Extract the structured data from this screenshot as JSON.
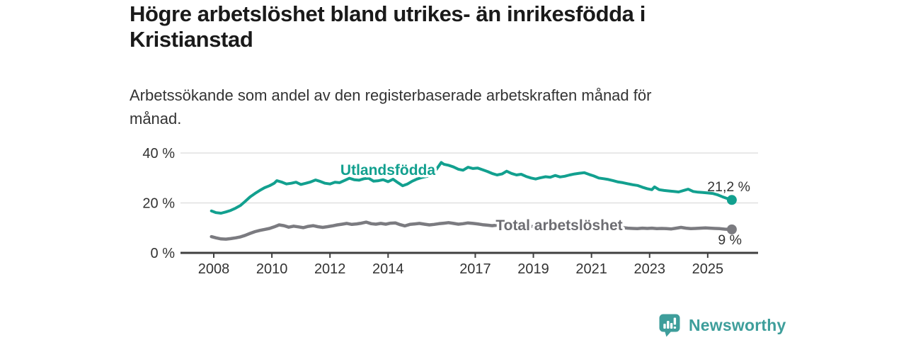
{
  "header": {
    "title_lines": [
      "Högre arbetslöshet bland utrikes- än inrikesfödda i",
      "Kristianstad"
    ],
    "subtitle_lines": [
      "Arbetssökande som andel av den registerbaserade arbetskraften månad för",
      "månad."
    ]
  },
  "chart_data": {
    "type": "line",
    "title": "Högre arbetslöshet bland utrikes- än inrikesfödda i Kristianstad",
    "subtitle": "Arbetssökande som andel av den registerbaserade arbetskraften månad för månad.",
    "grid": "horizontal",
    "legend_position": "inline-labels",
    "x_axis": {
      "ticks": [
        2008,
        2010,
        2012,
        2014,
        2017,
        2019,
        2021,
        2023,
        2025
      ],
      "tick_labels": [
        "2008",
        "2010",
        "2012",
        "2014",
        "2017",
        "2019",
        "2021",
        "2023",
        "2025"
      ],
      "range": [
        2007.8,
        2026.2
      ]
    },
    "y_axis": {
      "ticks": [
        0,
        20,
        40
      ],
      "tick_labels": [
        "0 %",
        "20 %",
        "40 %"
      ],
      "range": [
        0,
        42
      ],
      "unit": "%"
    },
    "series": [
      {
        "name": "Utlandsfödda",
        "color": "#12A08F",
        "end_label": "21,2 %",
        "end_value": 21.2,
        "points": [
          [
            2007.92,
            16.8
          ],
          [
            2008.08,
            16.1
          ],
          [
            2008.25,
            15.9
          ],
          [
            2008.42,
            16.4
          ],
          [
            2008.58,
            17.0
          ],
          [
            2008.75,
            17.9
          ],
          [
            2008.92,
            19.0
          ],
          [
            2009.08,
            20.6
          ],
          [
            2009.25,
            22.4
          ],
          [
            2009.42,
            23.8
          ],
          [
            2009.58,
            25.0
          ],
          [
            2009.75,
            26.1
          ],
          [
            2009.92,
            26.9
          ],
          [
            2010.08,
            27.9
          ],
          [
            2010.17,
            28.9
          ],
          [
            2010.33,
            28.4
          ],
          [
            2010.5,
            27.6
          ],
          [
            2010.67,
            27.9
          ],
          [
            2010.83,
            28.3
          ],
          [
            2011.0,
            27.4
          ],
          [
            2011.17,
            27.9
          ],
          [
            2011.33,
            28.4
          ],
          [
            2011.5,
            29.2
          ],
          [
            2011.67,
            28.6
          ],
          [
            2011.83,
            27.9
          ],
          [
            2012.0,
            27.6
          ],
          [
            2012.17,
            28.3
          ],
          [
            2012.33,
            28.1
          ],
          [
            2012.5,
            29.0
          ],
          [
            2012.67,
            29.9
          ],
          [
            2012.83,
            29.3
          ],
          [
            2013.0,
            29.1
          ],
          [
            2013.17,
            29.7
          ],
          [
            2013.33,
            29.9
          ],
          [
            2013.5,
            28.7
          ],
          [
            2013.67,
            28.9
          ],
          [
            2013.83,
            29.3
          ],
          [
            2014.0,
            28.5
          ],
          [
            2014.17,
            29.5
          ],
          [
            2014.33,
            28.2
          ],
          [
            2014.5,
            26.9
          ],
          [
            2014.67,
            27.6
          ],
          [
            2014.83,
            28.7
          ],
          [
            2015.0,
            29.6
          ],
          [
            2015.17,
            30.2
          ],
          [
            2015.33,
            30.6
          ],
          [
            2015.5,
            31.4
          ],
          [
            2015.67,
            33.6
          ],
          [
            2015.83,
            36.2
          ],
          [
            2015.92,
            35.5
          ],
          [
            2016.08,
            35.1
          ],
          [
            2016.25,
            34.4
          ],
          [
            2016.42,
            33.5
          ],
          [
            2016.58,
            33.1
          ],
          [
            2016.75,
            34.3
          ],
          [
            2016.92,
            33.8
          ],
          [
            2017.08,
            34.0
          ],
          [
            2017.25,
            33.3
          ],
          [
            2017.42,
            32.6
          ],
          [
            2017.58,
            31.8
          ],
          [
            2017.75,
            31.2
          ],
          [
            2017.92,
            31.6
          ],
          [
            2018.08,
            32.7
          ],
          [
            2018.25,
            31.8
          ],
          [
            2018.42,
            31.2
          ],
          [
            2018.58,
            31.5
          ],
          [
            2018.75,
            30.6
          ],
          [
            2018.92,
            30.0
          ],
          [
            2019.08,
            29.6
          ],
          [
            2019.25,
            30.1
          ],
          [
            2019.42,
            30.5
          ],
          [
            2019.58,
            30.3
          ],
          [
            2019.75,
            31.0
          ],
          [
            2019.92,
            30.4
          ],
          [
            2020.08,
            30.7
          ],
          [
            2020.25,
            31.2
          ],
          [
            2020.42,
            31.6
          ],
          [
            2020.58,
            31.9
          ],
          [
            2020.75,
            32.1
          ],
          [
            2020.92,
            31.4
          ],
          [
            2021.08,
            30.8
          ],
          [
            2021.25,
            30.0
          ],
          [
            2021.42,
            29.7
          ],
          [
            2021.58,
            29.4
          ],
          [
            2021.75,
            28.9
          ],
          [
            2021.92,
            28.4
          ],
          [
            2022.08,
            28.1
          ],
          [
            2022.25,
            27.7
          ],
          [
            2022.42,
            27.3
          ],
          [
            2022.58,
            27.0
          ],
          [
            2022.75,
            26.3
          ],
          [
            2022.92,
            25.7
          ],
          [
            2023.08,
            25.3
          ],
          [
            2023.17,
            26.4
          ],
          [
            2023.33,
            25.3
          ],
          [
            2023.5,
            25.0
          ],
          [
            2023.67,
            24.8
          ],
          [
            2023.83,
            24.6
          ],
          [
            2024.0,
            24.4
          ],
          [
            2024.17,
            25.0
          ],
          [
            2024.33,
            25.5
          ],
          [
            2024.5,
            24.6
          ],
          [
            2024.67,
            24.3
          ],
          [
            2024.83,
            24.2
          ],
          [
            2025.0,
            24.0
          ],
          [
            2025.17,
            23.8
          ],
          [
            2025.33,
            23.3
          ],
          [
            2025.5,
            22.5
          ],
          [
            2025.67,
            21.8
          ],
          [
            2025.83,
            21.2
          ]
        ]
      },
      {
        "name": "Total arbetslöshet",
        "color": "#7B7B80",
        "label_color": "#6D6D72",
        "end_label": "9 %",
        "end_value": 9,
        "points": [
          [
            2007.92,
            6.5
          ],
          [
            2008.08,
            6.0
          ],
          [
            2008.25,
            5.6
          ],
          [
            2008.42,
            5.5
          ],
          [
            2008.58,
            5.7
          ],
          [
            2008.75,
            6.0
          ],
          [
            2008.92,
            6.4
          ],
          [
            2009.08,
            7.0
          ],
          [
            2009.25,
            7.8
          ],
          [
            2009.42,
            8.5
          ],
          [
            2009.58,
            9.0
          ],
          [
            2009.75,
            9.4
          ],
          [
            2009.92,
            9.8
          ],
          [
            2010.08,
            10.4
          ],
          [
            2010.25,
            11.2
          ],
          [
            2010.42,
            10.9
          ],
          [
            2010.58,
            10.3
          ],
          [
            2010.75,
            10.7
          ],
          [
            2010.92,
            10.4
          ],
          [
            2011.08,
            10.1
          ],
          [
            2011.25,
            10.6
          ],
          [
            2011.42,
            10.9
          ],
          [
            2011.58,
            10.5
          ],
          [
            2011.75,
            10.2
          ],
          [
            2011.92,
            10.5
          ],
          [
            2012.08,
            10.8
          ],
          [
            2012.25,
            11.2
          ],
          [
            2012.42,
            11.5
          ],
          [
            2012.58,
            11.8
          ],
          [
            2012.75,
            11.4
          ],
          [
            2012.92,
            11.6
          ],
          [
            2013.08,
            11.9
          ],
          [
            2013.25,
            12.3
          ],
          [
            2013.42,
            11.7
          ],
          [
            2013.58,
            11.5
          ],
          [
            2013.75,
            11.8
          ],
          [
            2013.92,
            11.5
          ],
          [
            2014.08,
            11.9
          ],
          [
            2014.25,
            12.0
          ],
          [
            2014.42,
            11.3
          ],
          [
            2014.58,
            10.8
          ],
          [
            2014.75,
            11.4
          ],
          [
            2014.92,
            11.6
          ],
          [
            2015.08,
            11.8
          ],
          [
            2015.25,
            11.5
          ],
          [
            2015.42,
            11.2
          ],
          [
            2015.58,
            11.4
          ],
          [
            2015.75,
            11.7
          ],
          [
            2015.92,
            11.9
          ],
          [
            2016.08,
            12.1
          ],
          [
            2016.25,
            11.8
          ],
          [
            2016.42,
            11.5
          ],
          [
            2016.58,
            11.7
          ],
          [
            2016.75,
            12.0
          ],
          [
            2016.92,
            11.8
          ],
          [
            2017.08,
            11.6
          ],
          [
            2017.25,
            11.3
          ],
          [
            2017.42,
            11.1
          ],
          [
            2017.58,
            10.9
          ],
          [
            2017.75,
            11.1
          ],
          [
            2017.92,
            11.3
          ],
          [
            2018.08,
            11.2
          ],
          [
            2018.25,
            11.0
          ],
          [
            2018.42,
            10.9
          ],
          [
            2018.58,
            11.1
          ],
          [
            2018.75,
            10.8
          ],
          [
            2018.92,
            10.6
          ],
          [
            2019.08,
            10.5
          ],
          [
            2019.25,
            10.7
          ],
          [
            2019.42,
            10.8
          ],
          [
            2019.58,
            10.6
          ],
          [
            2019.75,
            10.9
          ],
          [
            2019.92,
            10.7
          ],
          [
            2020.08,
            10.9
          ],
          [
            2020.25,
            11.2
          ],
          [
            2020.42,
            11.4
          ],
          [
            2020.58,
            11.3
          ],
          [
            2020.75,
            11.1
          ],
          [
            2020.92,
            10.9
          ],
          [
            2021.08,
            10.7
          ],
          [
            2021.25,
            10.5
          ],
          [
            2021.42,
            10.4
          ],
          [
            2021.58,
            10.3
          ],
          [
            2021.75,
            10.1
          ],
          [
            2021.92,
            10.0
          ],
          [
            2022.08,
            10.1
          ],
          [
            2022.25,
            9.9
          ],
          [
            2022.42,
            9.8
          ],
          [
            2022.58,
            9.7
          ],
          [
            2022.75,
            9.9
          ],
          [
            2022.92,
            9.8
          ],
          [
            2023.08,
            9.9
          ],
          [
            2023.25,
            9.7
          ],
          [
            2023.42,
            9.8
          ],
          [
            2023.58,
            9.7
          ],
          [
            2023.75,
            9.6
          ],
          [
            2023.92,
            9.9
          ],
          [
            2024.08,
            10.2
          ],
          [
            2024.25,
            9.9
          ],
          [
            2024.42,
            9.7
          ],
          [
            2024.58,
            9.8
          ],
          [
            2024.75,
            9.9
          ],
          [
            2024.92,
            10.0
          ],
          [
            2025.08,
            9.9
          ],
          [
            2025.25,
            9.8
          ],
          [
            2025.42,
            9.7
          ],
          [
            2025.58,
            9.5
          ],
          [
            2025.75,
            9.4
          ],
          [
            2025.83,
            9.4
          ]
        ]
      }
    ]
  },
  "footer": {
    "brand": "Newsworthy",
    "brand_color": "#3E9E9B",
    "logo_icon": "newsworthy-speech-bubble-bar-chart-icon"
  },
  "colors": {
    "title_text": "#1a1a1a",
    "subtitle_text": "#333333",
    "axis_text": "#333333",
    "axis_line": "#404040",
    "gridline": "#dcdcdc",
    "background": "#ffffff"
  }
}
